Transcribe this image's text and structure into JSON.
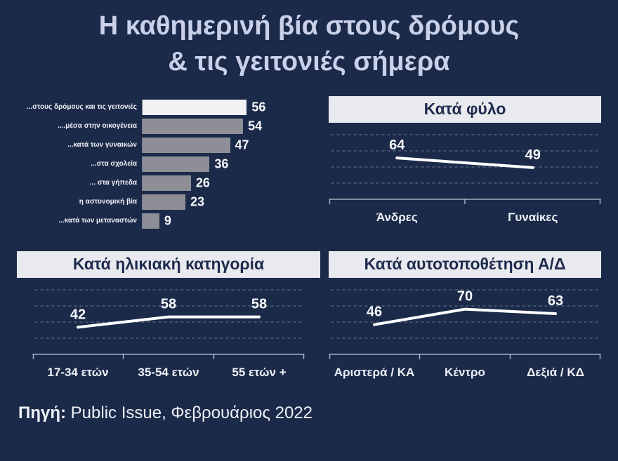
{
  "title": {
    "line1": "Η καθημερινή βία στους δρόμους",
    "line2": "& τις γειτονιές σήμερα"
  },
  "source": {
    "label": "Πηγή:",
    "text": " Public Issue, Φεβρουάριος 2022"
  },
  "colors": {
    "background": "#1b2a48",
    "title_text": "#c9d1ea",
    "header_bg": "#e9eaef",
    "header_text": "#1e2b4d",
    "bar_default": "#8e8f96",
    "bar_highlight": "#f2f2f4",
    "line": "#ffffff",
    "label_text": "#f6f8fc"
  },
  "chart_data": [
    {
      "id": "violence-types",
      "type": "bar",
      "orientation": "horizontal",
      "title": "",
      "categories": [
        "...στους δρόμους και τις γειτονιές",
        "....μέσα στην οικογένεια",
        "...κατά των γυναικών",
        "...στα σχολεία",
        "... στα γήπεδα",
        "η αστυνομική βία",
        "...κατά των μεταναστών"
      ],
      "values": [
        56,
        54,
        47,
        36,
        26,
        23,
        9
      ],
      "xlim": [
        0,
        60
      ],
      "highlight_index": 0,
      "grid": false
    },
    {
      "id": "by-gender",
      "type": "line",
      "title": "Κατά φύλο",
      "categories": [
        "Άνδρες",
        "Γυναίκες"
      ],
      "values": [
        64,
        49
      ],
      "ylim": [
        0,
        100
      ],
      "grid": true,
      "legend": false
    },
    {
      "id": "by-age",
      "type": "line",
      "title": "Κατά ηλικιακή κατηγορία",
      "categories": [
        "17-34 ετών",
        "35-54 ετών",
        "55 ετών +"
      ],
      "values": [
        42,
        58,
        58
      ],
      "ylim": [
        0,
        100
      ],
      "grid": true,
      "legend": false
    },
    {
      "id": "by-politics",
      "type": "line",
      "title": "Κατά αυτοτοποθέτηση Α/Δ",
      "categories": [
        "Αριστερά / ΚΑ",
        "Κέντρο",
        "Δεξιά / ΚΔ"
      ],
      "values": [
        46,
        70,
        63
      ],
      "ylim": [
        0,
        100
      ],
      "grid": true,
      "legend": false
    }
  ]
}
